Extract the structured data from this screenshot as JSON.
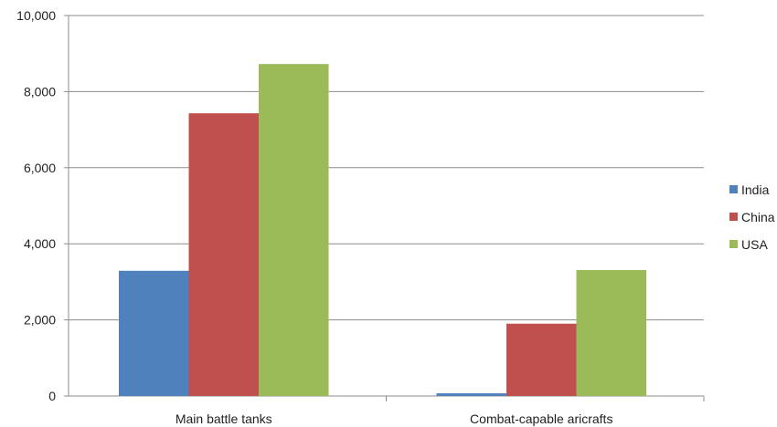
{
  "chart_data": {
    "type": "bar",
    "categories": [
      "Main battle tanks",
      "Combat-capable aricrafts"
    ],
    "series": [
      {
        "name": "India",
        "values": [
          3290,
          70
        ],
        "color": "#4f81bd"
      },
      {
        "name": "China",
        "values": [
          7430,
          1900
        ],
        "color": "#c0504d"
      },
      {
        "name": "USA",
        "values": [
          8725,
          3310
        ],
        "color": "#9bbb59"
      }
    ],
    "yticks": [
      "0",
      "2,000",
      "4,000",
      "6,000",
      "8,000",
      "10,000"
    ],
    "ylim": [
      0,
      10000
    ],
    "grid": true,
    "legend_position": "right"
  }
}
